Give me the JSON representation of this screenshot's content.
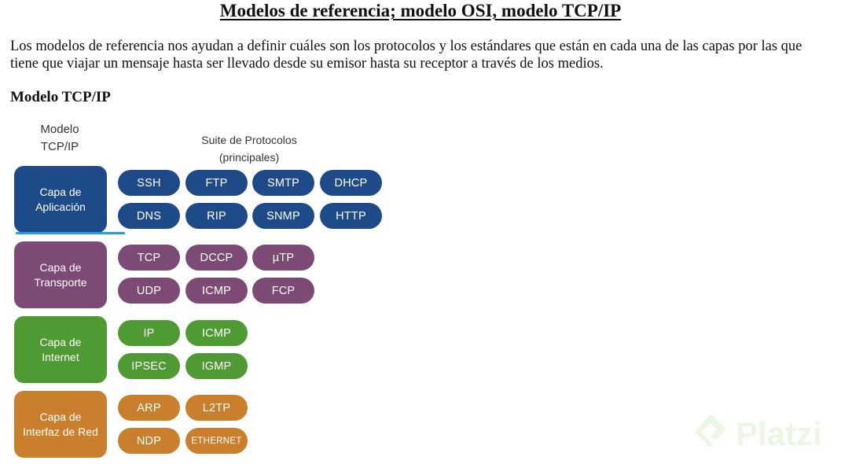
{
  "page": {
    "title": "Modelos de referencia; modelo OSI, modelo TCP/IP",
    "intro": "Los modelos de referencia nos ayudan a definir cuáles son los protocolos y los estándares que están en cada una de las capas por las que tiene que viajar un mensaje hasta ser llevado desde su emisor hasta su receptor a través de los medios.",
    "section_heading": "Modelo TCP/IP"
  },
  "diagram": {
    "model_label": "Modelo\nTCP/IP",
    "suite_label": "Suite de Protocolos\n(principales)",
    "layers": [
      {
        "label": "Capa de\nAplicación",
        "color": "#1e4a8a",
        "protocols": [
          "SSH",
          "FTP",
          "SMTP",
          "DHCP",
          "DNS",
          "RIP",
          "SNMP",
          "HTTP"
        ]
      },
      {
        "label": "Capa de\nTransporte",
        "color": "#7d4a75",
        "protocols": [
          "TCP",
          "DCCP",
          "µTP",
          "UDP",
          "ICMP",
          "FCP"
        ]
      },
      {
        "label": "Capa de\nInternet",
        "color": "#4f9a32",
        "protocols": [
          "IP",
          "ICMP",
          "IPSEC",
          "IGMP"
        ]
      },
      {
        "label": "Capa de\nInterfaz de Red",
        "color": "#c97f2c",
        "protocols": [
          "ARP",
          "L2TP",
          "NDP",
          "ETHERNET"
        ]
      }
    ],
    "highlight_color": "#1da1d6"
  },
  "watermark": {
    "text": "Platzi",
    "color": "#7ab52f"
  }
}
